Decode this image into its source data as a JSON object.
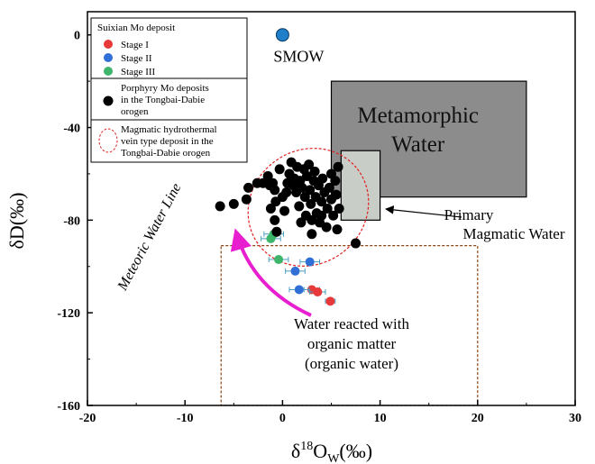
{
  "chart_data": {
    "type": "scatter",
    "title": "",
    "xlabel": {
      "prefix": "δ",
      "sup": "18",
      "main": "O",
      "sub": "W",
      "suffix": "(‰)"
    },
    "ylabel": "δD(‰)",
    "xlim": [
      -20,
      30
    ],
    "ylim": [
      -160,
      10
    ],
    "x_ticks": [
      -20,
      -10,
      0,
      10,
      20,
      30
    ],
    "y_ticks": [
      0,
      -40,
      -80,
      -120,
      -160
    ],
    "grid": false,
    "legend_position": "top-left",
    "legend": {
      "title": "Suixian Mo deposit",
      "stage_items": [
        {
          "label": "Stage I",
          "color": "#e8393a"
        },
        {
          "label": "Stage II",
          "color": "#2f6fd6"
        },
        {
          "label": "Stage III",
          "color": "#3db56a"
        }
      ],
      "porphyry_lines": [
        "Porphyry Mo deposits",
        "in the Tongbai-Dabie",
        "orogen"
      ],
      "magmatic_lines": [
        "Magmatic hydrothermal",
        "vein type deposit in the",
        "Tongbai-Dabie orogen"
      ]
    },
    "smow": {
      "label": "SMOW",
      "x": 0,
      "y": 0,
      "color": "#1f7fc8"
    },
    "metamorphic_water": {
      "label_lines": [
        "Metamorphic",
        "Water"
      ],
      "x": [
        5,
        25
      ],
      "y": [
        -20,
        -70
      ],
      "color": "#8c8c8c"
    },
    "primary_magmatic_water": {
      "label_lines": [
        "Primary",
        "Magmatic Water"
      ],
      "x": [
        6,
        10
      ],
      "y": [
        -50,
        -80
      ],
      "color": "#c8cdc8"
    },
    "organic_water": {
      "label_lines": [
        "Water reacted with",
        "organic matter",
        "(organic water)"
      ],
      "x": [
        -6.3,
        20
      ],
      "y": [
        -91,
        -160
      ],
      "color": "#8b4513"
    },
    "meteoric_water_line_label": "Meteoric Water Line",
    "series": [
      {
        "name": "Stage I",
        "color": "#e8393a",
        "points": [
          {
            "x": 3.0,
            "y": -110,
            "xerr": 0.8
          },
          {
            "x": 3.6,
            "y": -111,
            "xerr": 0.8
          },
          {
            "x": 4.9,
            "y": -115,
            "xerr": 0.5
          }
        ]
      },
      {
        "name": "Stage II",
        "color": "#2f6fd6",
        "points": [
          {
            "x": 2.8,
            "y": -98,
            "xerr": 1.0
          },
          {
            "x": 1.3,
            "y": -102,
            "xerr": 1.0
          },
          {
            "x": 1.7,
            "y": -110,
            "xerr": 1.0
          }
        ]
      },
      {
        "name": "Stage III",
        "color": "#3db56a",
        "points": [
          {
            "x": -0.9,
            "y": -86,
            "xerr": 1.0
          },
          {
            "x": -1.2,
            "y": -88,
            "xerr": 1.0
          },
          {
            "x": -0.4,
            "y": -97,
            "xerr": 1.0
          }
        ]
      },
      {
        "name": "Porphyry Mo deposits in the Tongbai-Dabie orogen",
        "color": "#000000",
        "points": [
          {
            "x": -6.4,
            "y": -74
          },
          {
            "x": -5.0,
            "y": -73
          },
          {
            "x": -3.7,
            "y": -71
          },
          {
            "x": -3.5,
            "y": -66
          },
          {
            "x": -2.0,
            "y": -64
          },
          {
            "x": -1.3,
            "y": -65
          },
          {
            "x": -2.6,
            "y": -64
          },
          {
            "x": -1.5,
            "y": -61
          },
          {
            "x": -1.0,
            "y": -64
          },
          {
            "x": -0.8,
            "y": -67
          },
          {
            "x": -0.7,
            "y": -72
          },
          {
            "x": -1.2,
            "y": -75
          },
          {
            "x": -0.8,
            "y": -80
          },
          {
            "x": -0.6,
            "y": -85
          },
          {
            "x": 0.2,
            "y": -76
          },
          {
            "x": 0.5,
            "y": -64
          },
          {
            "x": 0.7,
            "y": -60
          },
          {
            "x": 0.9,
            "y": -55
          },
          {
            "x": 1.1,
            "y": -65
          },
          {
            "x": 1.2,
            "y": -62
          },
          {
            "x": 1.4,
            "y": -68
          },
          {
            "x": 1.5,
            "y": -57
          },
          {
            "x": 1.7,
            "y": -74
          },
          {
            "x": 1.8,
            "y": -63
          },
          {
            "x": 2.0,
            "y": -66
          },
          {
            "x": 2.2,
            "y": -58
          },
          {
            "x": 2.3,
            "y": -70
          },
          {
            "x": 2.4,
            "y": -78
          },
          {
            "x": 2.5,
            "y": -61
          },
          {
            "x": 2.7,
            "y": -56
          },
          {
            "x": 2.8,
            "y": -67
          },
          {
            "x": 2.9,
            "y": -73
          },
          {
            "x": 3.0,
            "y": -80
          },
          {
            "x": 3.2,
            "y": -63
          },
          {
            "x": 3.3,
            "y": -59
          },
          {
            "x": 3.4,
            "y": -70
          },
          {
            "x": 3.5,
            "y": -77
          },
          {
            "x": 3.7,
            "y": -65
          },
          {
            "x": 3.8,
            "y": -81
          },
          {
            "x": 4.0,
            "y": -72
          },
          {
            "x": 4.1,
            "y": -62
          },
          {
            "x": 4.3,
            "y": -68
          },
          {
            "x": 4.5,
            "y": -83
          },
          {
            "x": 4.6,
            "y": -75
          },
          {
            "x": 4.8,
            "y": -66
          },
          {
            "x": 5.0,
            "y": -71
          },
          {
            "x": 5.2,
            "y": -78
          },
          {
            "x": 5.4,
            "y": -63
          },
          {
            "x": 5.5,
            "y": -69
          },
          {
            "x": 5.7,
            "y": -57
          },
          {
            "x": 5.8,
            "y": -75
          },
          {
            "x": 5.0,
            "y": -60
          },
          {
            "x": 0.0,
            "y": -70
          },
          {
            "x": -0.3,
            "y": -58
          },
          {
            "x": 3.0,
            "y": -86
          },
          {
            "x": 1.9,
            "y": -81
          },
          {
            "x": 4.0,
            "y": -78
          },
          {
            "x": 7.5,
            "y": -90
          },
          {
            "x": 5.6,
            "y": -84
          },
          {
            "x": 0.4,
            "y": -68
          }
        ]
      }
    ]
  }
}
